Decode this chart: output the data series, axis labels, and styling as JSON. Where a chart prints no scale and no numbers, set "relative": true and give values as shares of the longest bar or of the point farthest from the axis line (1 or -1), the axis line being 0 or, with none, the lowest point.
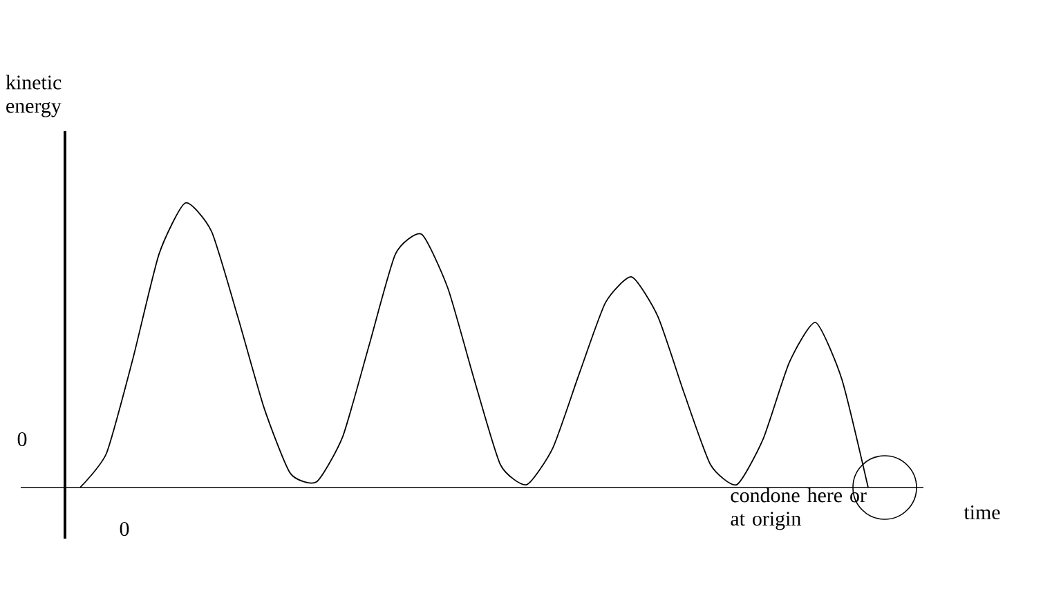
{
  "chart_data": {
    "type": "line",
    "relative": true,
    "xlabel": "time",
    "ylabel": "kinetic energy",
    "color": "#000000",
    "categories": [
      null,
      null,
      null,
      null,
      null,
      null,
      null,
      null,
      null,
      null,
      null,
      null,
      null,
      null,
      null,
      null,
      null,
      null,
      null,
      null,
      null,
      null,
      null,
      null,
      null,
      null,
      null,
      null,
      null,
      null,
      null
    ],
    "values": [
      0,
      0.12,
      0.45,
      0.82,
      1.0,
      0.9,
      0.6,
      0.28,
      0.05,
      0.02,
      0.18,
      0.5,
      0.82,
      0.89,
      0.7,
      0.38,
      0.08,
      0.01,
      0.14,
      0.4,
      0.65,
      0.74,
      0.6,
      0.33,
      0.08,
      0.01,
      0.17,
      0.44,
      0.58,
      0.38,
      0
    ],
    "annotations": [
      "0",
      "0",
      "condone here or at origin"
    ]
  }
}
